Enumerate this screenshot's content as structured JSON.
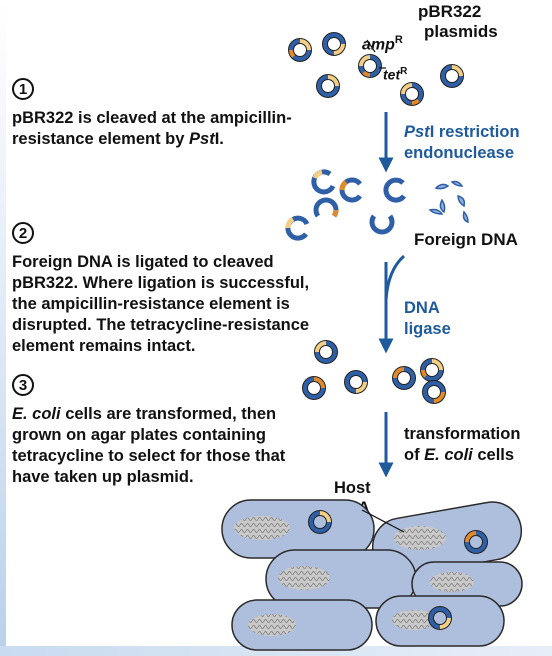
{
  "labels": {
    "plasmid_name": "pBR322",
    "plasmids_word": "plasmids",
    "amp_gene": "amp",
    "amp_sup": "R",
    "tet_gene": "tet",
    "tet_sup": "R",
    "enzyme_italic": "Pst",
    "enzyme_rest": "I restriction",
    "enzyme_line2": "endonuclease",
    "foreign_dna": "Foreign DNA",
    "ligase_line1": "DNA",
    "ligase_line2": "ligase",
    "transform_line1": "transformation",
    "transform_line2_pre": "of ",
    "transform_line2_italic": "E. coli",
    "transform_line2_post": " cells",
    "host_line1": "Host",
    "host_line2": "DNA"
  },
  "steps": [
    {
      "number": "1",
      "lines": [
        "pBR322 is cleaved at the ampicillin-"
      ],
      "line2_pre": "resistance element by ",
      "line2_italic": "Pst",
      "line2_post": "I."
    },
    {
      "number": "2",
      "lines": [
        "Foreign DNA is ligated to cleaved",
        "pBR322. Where ligation is successful,",
        "the ampicillin-resistance element is",
        "disrupted. The tetracycline-resistance",
        "element remains intact."
      ]
    },
    {
      "number": "3",
      "line1_italic": "E. coli",
      "line1_post": " cells are transformed, then",
      "lines": [
        "grown on agar plates containing",
        "tetracycline to select for those that",
        "have taken up plasmid."
      ]
    }
  ],
  "colors": {
    "arrow_blue": "#1e5a9c",
    "cell_fill": "#aebfde",
    "cell_stroke": "#2a2a2a",
    "plasmid_blue": "#2f5fa7",
    "plasmid_yellow": "#f3cf86",
    "plasmid_orange": "#e08a2c"
  }
}
